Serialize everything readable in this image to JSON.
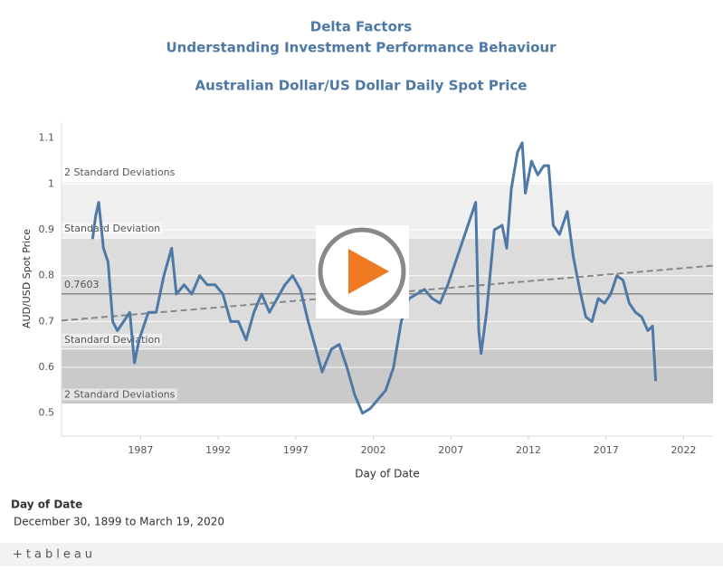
{
  "chart_data": {
    "type": "line",
    "title": "Delta Factors",
    "subtitle": "Understanding Investment Performance Behaviour",
    "chart_title": "Australian Dollar/US Dollar Daily Spot Price",
    "x_label": "Day of Date",
    "y_label": "AUD/USD Spot Price",
    "xlim": [
      1981.9,
      2023.9
    ],
    "xticks": [
      1987,
      1992,
      1997,
      2002,
      2007,
      2012,
      2017,
      2022
    ],
    "ylim": [
      0.45,
      1.135
    ],
    "yticks": [
      0.5,
      0.6,
      0.7,
      0.8,
      0.9,
      1.0,
      1.1
    ],
    "grid": true,
    "band_colors": [
      "#efefef",
      "#dcdcdc",
      "#cacaca"
    ],
    "reference_lines": [
      {
        "value": 1.005,
        "label": "2 Standard Deviations"
      },
      {
        "value": 0.882,
        "label": "Standard Deviation"
      },
      {
        "value": 0.64,
        "label": "Standard Deviation"
      },
      {
        "value": 0.52,
        "label": "2 Standard Deviations"
      }
    ],
    "mean": 0.7603,
    "trend": {
      "x": [
        1981.9,
        2023.9
      ],
      "y": [
        0.702,
        0.822
      ],
      "color": "#888888"
    },
    "series": [
      {
        "name": "AUD/USD Spot Price",
        "color": "#4e79a7",
        "x": [
          1983.9,
          1984.1,
          1984.3,
          1984.6,
          1984.9,
          1985.2,
          1985.5,
          1985.9,
          1986.3,
          1986.6,
          1986.9,
          1987.5,
          1988,
          1988.5,
          1989,
          1989.3,
          1989.8,
          1990.3,
          1990.8,
          1991.3,
          1991.8,
          1992.3,
          1992.8,
          1993.3,
          1993.8,
          1994.3,
          1994.8,
          1995.3,
          1995.8,
          1996.3,
          1996.8,
          1997.3,
          1997.8,
          1998.3,
          1998.7,
          1999.3,
          1999.8,
          2000.3,
          2000.8,
          2001.3,
          2001.8,
          2002.3,
          2002.8,
          2003.3,
          2003.8,
          2004.3,
          2004.8,
          2005.3,
          2005.8,
          2006.3,
          2006.8,
          2007.3,
          2007.8,
          2008.3,
          2008.6,
          2008.8,
          2008.95,
          2009.3,
          2009.8,
          2010.3,
          2010.6,
          2010.9,
          2011.3,
          2011.6,
          2011.8,
          2012.2,
          2012.6,
          2013.0,
          2013.3,
          2013.6,
          2014.0,
          2014.5,
          2014.9,
          2015.3,
          2015.7,
          2016.1,
          2016.5,
          2016.9,
          2017.3,
          2017.7,
          2018.1,
          2018.5,
          2018.9,
          2019.3,
          2019.7,
          2020.0,
          2020.2
        ],
        "values": [
          0.88,
          0.93,
          0.96,
          0.86,
          0.83,
          0.7,
          0.68,
          0.7,
          0.72,
          0.61,
          0.66,
          0.72,
          0.72,
          0.8,
          0.86,
          0.76,
          0.78,
          0.76,
          0.8,
          0.78,
          0.78,
          0.76,
          0.7,
          0.7,
          0.66,
          0.72,
          0.76,
          0.72,
          0.75,
          0.78,
          0.8,
          0.77,
          0.7,
          0.64,
          0.59,
          0.64,
          0.65,
          0.6,
          0.54,
          0.5,
          0.51,
          0.53,
          0.55,
          0.6,
          0.7,
          0.75,
          0.76,
          0.77,
          0.75,
          0.74,
          0.78,
          0.83,
          0.88,
          0.93,
          0.96,
          0.68,
          0.63,
          0.72,
          0.9,
          0.91,
          0.86,
          0.99,
          1.07,
          1.09,
          0.98,
          1.05,
          1.02,
          1.04,
          1.04,
          0.91,
          0.89,
          0.94,
          0.84,
          0.77,
          0.71,
          0.7,
          0.75,
          0.74,
          0.76,
          0.8,
          0.79,
          0.74,
          0.72,
          0.71,
          0.68,
          0.69,
          0.57
        ]
      }
    ]
  },
  "filter": {
    "title": "Day of Date",
    "range": "December 30, 1899 to March 19, 2020"
  },
  "logo": "+tableau"
}
